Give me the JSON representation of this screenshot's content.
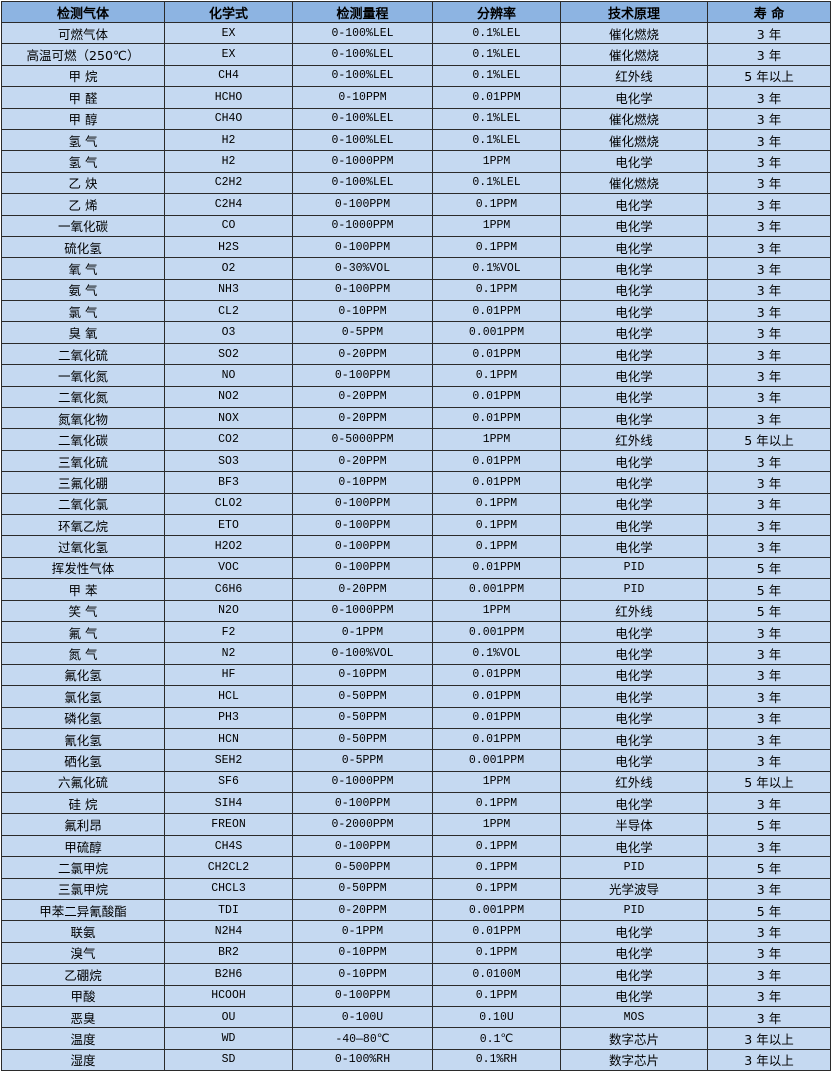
{
  "colors": {
    "header_bg": "#8db4e2",
    "cell_bg": "#c5d9f1",
    "border": "#2b2b2b"
  },
  "headers": [
    "检测气体",
    "化学式",
    "检测量程",
    "分辨率",
    "技术原理",
    "寿 命"
  ],
  "rows": [
    [
      "可燃气体",
      "EX",
      "0-100%LEL",
      "0.1%LEL",
      "催化燃烧",
      "3 年"
    ],
    [
      "高温可燃（250℃）",
      "EX",
      "0-100%LEL",
      "0.1%LEL",
      "催化燃烧",
      "3 年"
    ],
    [
      "甲 烷",
      "CH4",
      "0-100%LEL",
      "0.1%LEL",
      "红外线",
      "5 年以上"
    ],
    [
      "甲 醛",
      "HCHO",
      "0-10PPM",
      "0.01PPM",
      "电化学",
      "3 年"
    ],
    [
      "甲 醇",
      "CH4O",
      "0-100%LEL",
      "0.1%LEL",
      "催化燃烧",
      "3 年"
    ],
    [
      "氢 气",
      "H2",
      "0-100%LEL",
      "0.1%LEL",
      "催化燃烧",
      "3 年"
    ],
    [
      "氢 气",
      "H2",
      "0-1000PPM",
      "1PPM",
      "电化学",
      "3 年"
    ],
    [
      "乙 炔",
      "C2H2",
      "0-100%LEL",
      "0.1%LEL",
      "催化燃烧",
      "3 年"
    ],
    [
      "乙 烯",
      "C2H4",
      "0-100PPM",
      "0.1PPM",
      "电化学",
      "3 年"
    ],
    [
      "一氧化碳",
      "CO",
      "0-1000PPM",
      "1PPM",
      "电化学",
      "3 年"
    ],
    [
      "硫化氢",
      "H2S",
      "0-100PPM",
      "0.1PPM",
      "电化学",
      "3 年"
    ],
    [
      "氧 气",
      "O2",
      "0-30%VOL",
      "0.1%VOL",
      "电化学",
      "3 年"
    ],
    [
      "氨 气",
      "NH3",
      "0-100PPM",
      "0.1PPM",
      "电化学",
      "3 年"
    ],
    [
      "氯 气",
      "CL2",
      "0-10PPM",
      "0.01PPM",
      "电化学",
      "3 年"
    ],
    [
      "臭 氧",
      "O3",
      "0-5PPM",
      "0.001PPM",
      "电化学",
      "3 年"
    ],
    [
      "二氧化硫",
      "SO2",
      "0-20PPM",
      "0.01PPM",
      "电化学",
      "3 年"
    ],
    [
      "一氧化氮",
      "NO",
      "0-100PPM",
      "0.1PPM",
      "电化学",
      "3 年"
    ],
    [
      "二氧化氮",
      "NO2",
      "0-20PPM",
      "0.01PPM",
      "电化学",
      "3 年"
    ],
    [
      "氮氧化物",
      "NOX",
      "0-20PPM",
      "0.01PPM",
      "电化学",
      "3 年"
    ],
    [
      "二氧化碳",
      "CO2",
      "0-5000PPM",
      "1PPM",
      "红外线",
      "5 年以上"
    ],
    [
      "三氧化硫",
      "SO3",
      "0-20PPM",
      "0.01PPM",
      "电化学",
      "3 年"
    ],
    [
      "三氟化硼",
      "BF3",
      "0-10PPM",
      "0.01PPM",
      "电化学",
      "3 年"
    ],
    [
      "二氧化氯",
      "CLO2",
      "0-100PPM",
      "0.1PPM",
      "电化学",
      "3 年"
    ],
    [
      "环氧乙烷",
      "ETO",
      "0-100PPM",
      "0.1PPM",
      "电化学",
      "3 年"
    ],
    [
      "过氧化氢",
      "H2O2",
      "0-100PPM",
      "0.1PPM",
      "电化学",
      "3 年"
    ],
    [
      "挥发性气体",
      "VOC",
      "0-100PPM",
      "0.01PPM",
      "PID",
      "5 年"
    ],
    [
      "甲 苯",
      "C6H6",
      "0-20PPM",
      "0.001PPM",
      "PID",
      "5 年"
    ],
    [
      "笑 气",
      "N2O",
      "0-1000PPM",
      "1PPM",
      "红外线",
      "5 年"
    ],
    [
      "氟 气",
      "F2",
      "0-1PPM",
      "0.001PPM",
      "电化学",
      "3 年"
    ],
    [
      "氮 气",
      "N2",
      "0-100%VOL",
      "0.1%VOL",
      "电化学",
      "3 年"
    ],
    [
      "氟化氢",
      "HF",
      "0-10PPM",
      "0.01PPM",
      "电化学",
      "3 年"
    ],
    [
      "氯化氢",
      "HCL",
      "0-50PPM",
      "0.01PPM",
      "电化学",
      "3 年"
    ],
    [
      "磷化氢",
      "PH3",
      "0-50PPM",
      "0.01PPM",
      "电化学",
      "3 年"
    ],
    [
      "氰化氢",
      "HCN",
      "0-50PPM",
      "0.01PPM",
      "电化学",
      "3 年"
    ],
    [
      "硒化氢",
      "SEH2",
      "0-5PPM",
      "0.001PPM",
      "电化学",
      "3 年"
    ],
    [
      "六氟化硫",
      "SF6",
      "0-1000PPM",
      "1PPM",
      "红外线",
      "5 年以上"
    ],
    [
      "硅 烷",
      "SIH4",
      "0-100PPM",
      "0.1PPM",
      "电化学",
      "3 年"
    ],
    [
      "氟利昂",
      "FREON",
      "0-2000PPM",
      "1PPM",
      "半导体",
      "5 年"
    ],
    [
      "甲硫醇",
      "CH4S",
      "0-100PPM",
      "0.1PPM",
      "电化学",
      "3 年"
    ],
    [
      "二氯甲烷",
      "CH2CL2",
      "0-500PPM",
      "0.1PPM",
      "PID",
      "5 年"
    ],
    [
      "三氯甲烷",
      "CHCL3",
      "0-50PPM",
      "0.1PPM",
      "光学波导",
      "3 年"
    ],
    [
      "甲苯二异氰酸酯",
      "TDI",
      "0-20PPM",
      "0.001PPM",
      "PID",
      "5 年"
    ],
    [
      "联氨",
      "N2H4",
      "0-1PPM",
      "0.01PPM",
      "电化学",
      "3 年"
    ],
    [
      "溴气",
      "BR2",
      "0-10PPM",
      "0.1PPM",
      "电化学",
      "3 年"
    ],
    [
      "乙硼烷",
      "B2H6",
      "0-10PPM",
      "0.0100M",
      "电化学",
      "3 年"
    ],
    [
      "甲酸",
      "HCOOH",
      "0-100PPM",
      "0.1PPM",
      "电化学",
      "3 年"
    ],
    [
      "恶臭",
      "OU",
      "0-100U",
      "0.10U",
      "MOS",
      "3 年"
    ],
    [
      "温度",
      "WD",
      "-40—80℃",
      "0.1℃",
      "数字芯片",
      "3 年以上"
    ],
    [
      "湿度",
      "SD",
      "0-100%RH",
      "0.1%RH",
      "数字芯片",
      "3 年以上"
    ]
  ]
}
